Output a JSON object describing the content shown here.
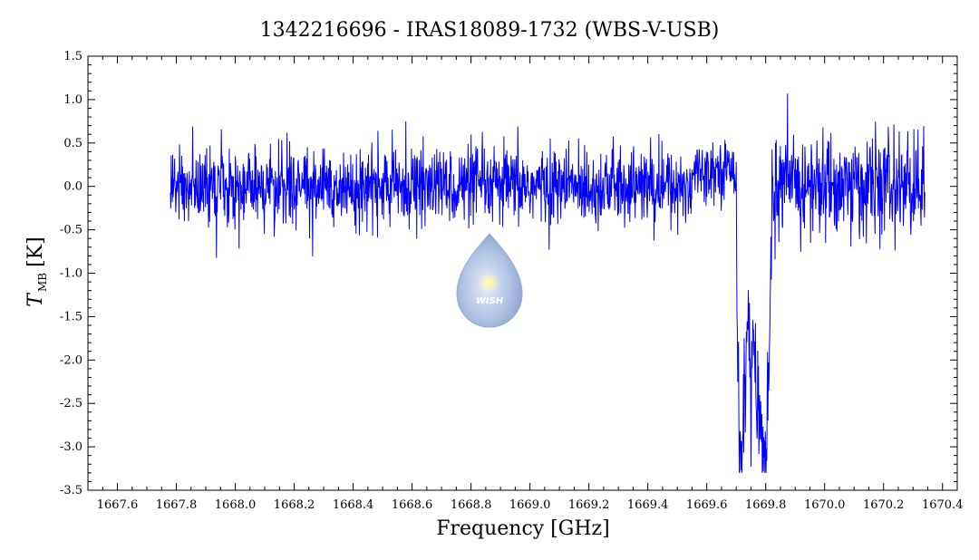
{
  "chart_data": {
    "type": "line",
    "title": "1342216696 - IRAS18089-1732 (WBS-V-USB)",
    "xlabel": "Frequency [GHz]",
    "ylabel_main": "T",
    "ylabel_sub": "MB",
    "ylabel_unit": "[K]",
    "xlim": [
      1667.5,
      1670.45
    ],
    "ylim": [
      -3.5,
      1.5
    ],
    "xticks_major": [
      "1667.6",
      "1667.8",
      "1668.0",
      "1668.2",
      "1668.4",
      "1668.6",
      "1668.8",
      "1669.0",
      "1669.2",
      "1669.4",
      "1669.6",
      "1669.8",
      "1670.0",
      "1670.2",
      "1670.4"
    ],
    "yticks_major": [
      "1.5",
      "1.0",
      "0.5",
      "0.0",
      "-0.5",
      "-1.0",
      "-1.5",
      "-2.0",
      "-2.5",
      "-3.0",
      "-3.5"
    ],
    "grid": false,
    "series": [
      {
        "color": "#0000ff",
        "x_range": [
          1667.78,
          1670.34
        ],
        "noise_rms": 0.22,
        "baseline": 0.0,
        "absorption_feature": {
          "start": 1669.7,
          "end": 1669.82,
          "min_value": -3.3,
          "peak_points": [
            [
              1669.7,
              -0.5
            ],
            [
              1669.71,
              -2.9
            ],
            [
              1669.72,
              -3.05
            ],
            [
              1669.73,
              -2.4
            ],
            [
              1669.74,
              -1.2
            ],
            [
              1669.75,
              -2.5
            ],
            [
              1669.76,
              -1.5
            ],
            [
              1669.77,
              -2.9
            ],
            [
              1669.78,
              -2.6
            ],
            [
              1669.79,
              -3.1
            ],
            [
              1669.8,
              -3.3
            ],
            [
              1669.81,
              -2.2
            ],
            [
              1669.82,
              -0.8
            ]
          ]
        }
      }
    ]
  },
  "watermark": {
    "text": "WISH",
    "color": "#9bb4dd"
  }
}
